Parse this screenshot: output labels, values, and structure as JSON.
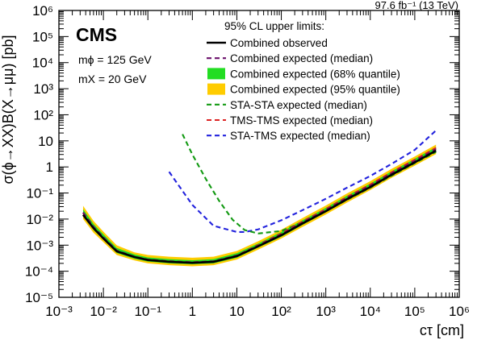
{
  "chart_data": {
    "type": "line",
    "xscale": "log",
    "yscale": "log",
    "xlim": [
      0.001,
      1000000
    ],
    "ylim": [
      1e-05,
      1000000
    ],
    "xlabel": "cτ [cm]",
    "ylabel": "σ(ϕ→XX)B(X→μμ) [pb]",
    "x_tick_labels": [
      "10⁻³",
      "10⁻²",
      "10⁻¹",
      "1",
      "10",
      "10²",
      "10³",
      "10⁴",
      "10⁵",
      "10⁶"
    ],
    "y_tick_labels": [
      "10⁻⁵",
      "10⁻⁴",
      "10⁻³",
      "10⁻²",
      "10⁻¹",
      "1",
      "10",
      "10²",
      "10³",
      "10⁴",
      "10⁵",
      "10⁶"
    ],
    "experiment": "CMS",
    "lumi": "97.6 fb⁻¹ (13 TeV)",
    "params": [
      "mϕ = 125 GeV",
      "mX = 20 GeV"
    ],
    "legend_title": "95% CL upper limits:",
    "x": [
      0.0035,
      0.006,
      0.01,
      0.02,
      0.05,
      0.1,
      0.3,
      1,
      3,
      10,
      30,
      100,
      300,
      1000,
      3000,
      10000,
      30000,
      100000,
      300000
    ],
    "series": [
      {
        "name": "Combined observed",
        "color": "#000000",
        "dash": "solid",
        "values": [
          0.0145,
          0.0045,
          0.0018,
          0.00058,
          0.00035,
          0.00027,
          0.00023,
          0.00021,
          0.00023,
          0.00038,
          0.0009,
          0.0024,
          0.0068,
          0.02,
          0.058,
          0.17,
          0.5,
          1.5,
          4.2
        ]
      },
      {
        "name": "Combined expected (median)",
        "color": "#6a0f6a",
        "dash": "dashed",
        "values": [
          0.018,
          0.005,
          0.002,
          0.00062,
          0.00036,
          0.00028,
          0.00024,
          0.00022,
          0.00024,
          0.0004,
          0.00095,
          0.0026,
          0.0074,
          0.022,
          0.064,
          0.19,
          0.56,
          1.7,
          4.8
        ]
      },
      {
        "name": "STA-STA expected (median)",
        "color": "#119911",
        "dash": "dashed",
        "x": [
          0.6,
          1,
          2,
          4,
          8,
          15,
          30,
          100,
          300,
          1000,
          3000,
          10000,
          30000,
          100000,
          300000
        ],
        "values": [
          18,
          3,
          0.35,
          0.05,
          0.0095,
          0.0038,
          0.0028,
          0.0035,
          0.0075,
          0.02,
          0.055,
          0.16,
          0.46,
          1.4,
          3.8
        ]
      },
      {
        "name": "TMS-TMS expected (median)",
        "color": "#dd2222",
        "dash": "dashed",
        "values": [
          0.017,
          0.0048,
          0.0019,
          0.0006,
          0.00036,
          0.00028,
          0.00024,
          0.00022,
          0.00024,
          0.0004,
          0.001,
          0.0028,
          0.008,
          0.024,
          0.07,
          0.21,
          0.62,
          1.9,
          5.4
        ]
      },
      {
        "name": "STA-TMS expected (median)",
        "color": "#2222dd",
        "dash": "dashed",
        "x": [
          0.3,
          1,
          3,
          10,
          15,
          30,
          100,
          300,
          1000,
          3000,
          10000,
          30000,
          100000,
          300000
        ],
        "values": [
          0.65,
          0.035,
          0.0055,
          0.0032,
          0.0032,
          0.004,
          0.009,
          0.022,
          0.06,
          0.16,
          0.45,
          1.3,
          4.5,
          25
        ]
      }
    ],
    "bands": [
      {
        "name": "Combined expected (68% quantile)",
        "color": "#22dd22",
        "low": [
          0.013,
          0.0038,
          0.0016,
          0.0005,
          0.0003,
          0.000235,
          0.0002,
          0.000185,
          0.0002,
          0.00033,
          0.0008,
          0.0021,
          0.006,
          0.018,
          0.052,
          0.155,
          0.45,
          1.35,
          3.8
        ],
        "high": [
          0.024,
          0.0065,
          0.0026,
          0.00078,
          0.00044,
          0.00034,
          0.00029,
          0.000265,
          0.00029,
          0.00049,
          0.00115,
          0.0032,
          0.009,
          0.027,
          0.078,
          0.23,
          0.68,
          2.05,
          5.8
        ]
      },
      {
        "name": "Combined expected (95% quantile)",
        "color": "#ffcc00",
        "low": [
          0.01,
          0.003,
          0.0013,
          0.00042,
          0.00026,
          0.0002,
          0.00017,
          0.000155,
          0.00017,
          0.00028,
          0.00067,
          0.0018,
          0.005,
          0.015,
          0.043,
          0.13,
          0.38,
          1.12,
          3.1
        ],
        "high": [
          0.032,
          0.0085,
          0.0033,
          0.00098,
          0.00053,
          0.00042,
          0.00036,
          0.00033,
          0.00036,
          0.0006,
          0.0014,
          0.0039,
          0.011,
          0.033,
          0.096,
          0.285,
          0.84,
          2.5,
          7.2
        ]
      }
    ]
  }
}
